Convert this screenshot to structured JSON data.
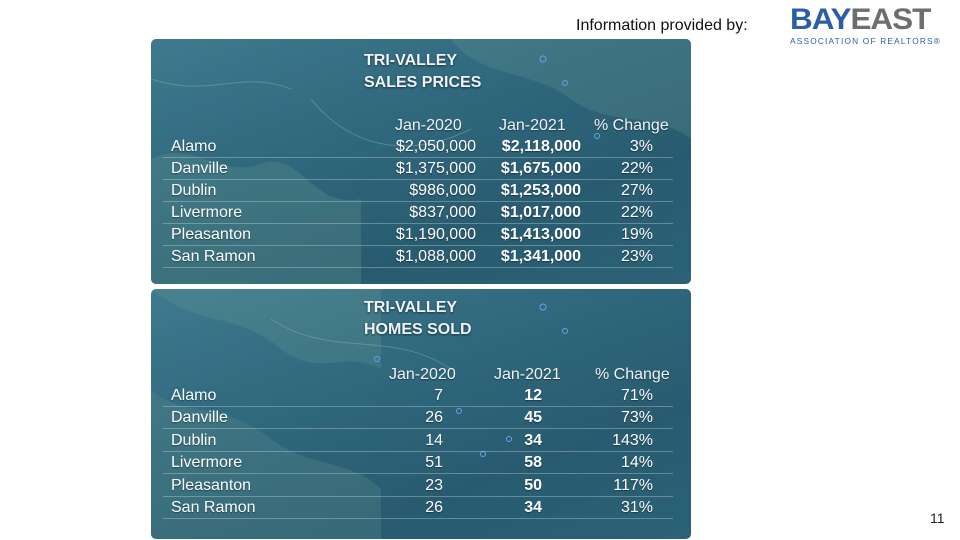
{
  "header": {
    "credit_text": "Information provided by:",
    "logo_word_left": "BAY",
    "logo_word_right": "EAST",
    "logo_subtitle": "ASSOCIATION OF REALTORS®"
  },
  "colors": {
    "panel": "#2f677c",
    "logo_blue": "#2a5fa7",
    "logo_gray": "#6d6e70"
  },
  "sales": {
    "title_line1": "TRI-VALLEY",
    "title_line2": "SALES PRICES",
    "columns": [
      "Jan-2020",
      "Jan-2021",
      "% Change"
    ],
    "rows": [
      {
        "city": "Alamo",
        "y2020": "$2,050,000",
        "y2021": "$2,118,000",
        "change": "3%"
      },
      {
        "city": "Danville",
        "y2020": "$1,375,000",
        "y2021": "$1,675,000",
        "change": "22%"
      },
      {
        "city": "Dublin",
        "y2020": "$986,000",
        "y2021": "$1,253,000",
        "change": "27%"
      },
      {
        "city": "Livermore",
        "y2020": "$837,000",
        "y2021": "$1,017,000",
        "change": "22%"
      },
      {
        "city": "Pleasanton",
        "y2020": "$1,190,000",
        "y2021": "$1,413,000",
        "change": "19%"
      },
      {
        "city": "San Ramon",
        "y2020": "$1,088,000",
        "y2021": "$1,341,000",
        "change": "23%"
      }
    ]
  },
  "sold": {
    "title_line1": "TRI-VALLEY",
    "title_line2": "HOMES SOLD",
    "columns": [
      "Jan-2020",
      "Jan-2021",
      "% Change"
    ],
    "rows": [
      {
        "city": "Alamo",
        "y2020": "7",
        "y2021": "12",
        "change": "71%"
      },
      {
        "city": "Danville",
        "y2020": "26",
        "y2021": "45",
        "change": "73%"
      },
      {
        "city": "Dublin",
        "y2020": "14",
        "y2021": "34",
        "change": "143%"
      },
      {
        "city": "Livermore",
        "y2020": "51",
        "y2021": "58",
        "change": "14%"
      },
      {
        "city": "Pleasanton",
        "y2020": "23",
        "y2021": "50",
        "change": "117%"
      },
      {
        "city": "San Ramon",
        "y2020": "26",
        "y2021": "34",
        "change": "31%"
      }
    ]
  },
  "footer": {
    "page_number": "11"
  }
}
